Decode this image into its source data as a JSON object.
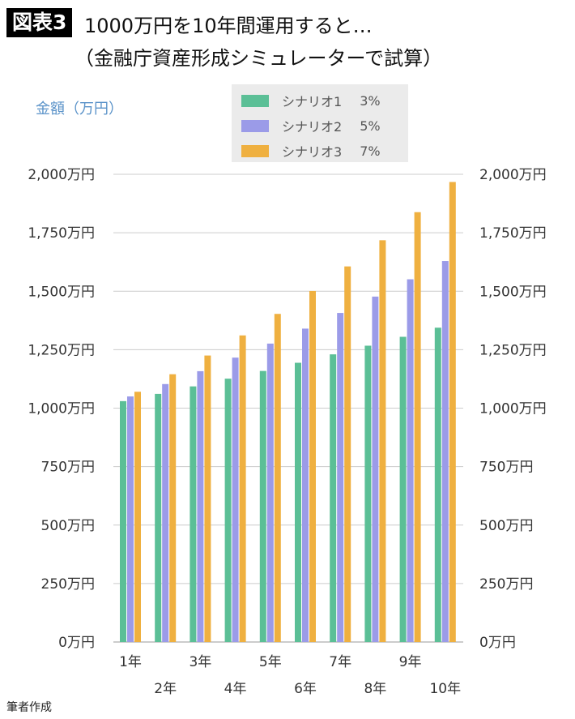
{
  "header": {
    "badge": "図表3",
    "title": "1000万円を10年間運用すると…",
    "subtitle": "（金融庁資産形成シミュレーターで試算）"
  },
  "footer": "筆者作成",
  "chart_data": {
    "type": "bar",
    "ylabel": "金額（万円）",
    "categories": [
      "1年",
      "2年",
      "3年",
      "4年",
      "5年",
      "6年",
      "7年",
      "8年",
      "9年",
      "10年"
    ],
    "yticks": [
      "0万円",
      "250万円",
      "500万円",
      "750万円",
      "1,000万円",
      "1,250万円",
      "1,500万円",
      "1,750万円",
      "2,000万円"
    ],
    "ylim": [
      0,
      2000
    ],
    "grid": true,
    "legend_position": "top-center",
    "series": [
      {
        "name": "シナリオ1",
        "rate": "3%",
        "color": "#5bbf96",
        "values": [
          1030,
          1061,
          1093,
          1126,
          1159,
          1194,
          1230,
          1267,
          1305,
          1344
        ]
      },
      {
        "name": "シナリオ2",
        "rate": "5%",
        "color": "#9b9be8",
        "values": [
          1050,
          1103,
          1158,
          1216,
          1276,
          1340,
          1407,
          1477,
          1551,
          1629
        ]
      },
      {
        "name": "シナリオ3",
        "rate": "7%",
        "color": "#efb040",
        "values": [
          1070,
          1145,
          1225,
          1311,
          1403,
          1501,
          1606,
          1718,
          1838,
          1967
        ]
      }
    ]
  }
}
